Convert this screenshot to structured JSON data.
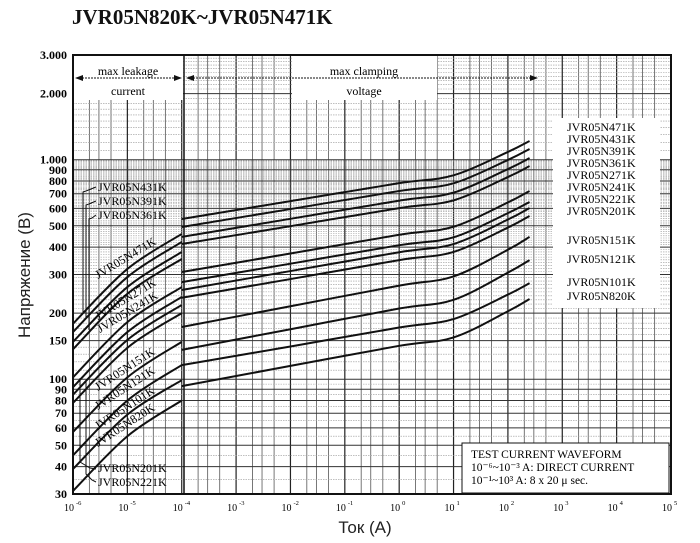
{
  "title": "JVR05N820K~JVR05N471K",
  "chart_data": {
    "type": "line",
    "title": "JVR05N820K~JVR05N471K",
    "xlabel": "Ток (А)",
    "ylabel": "Напряжение (В)",
    "xscale": "log",
    "yscale": "log",
    "xlim": [
      1e-06,
      100000.0
    ],
    "ylim": [
      30,
      3000
    ],
    "grid": true,
    "x_tick_base": "10",
    "x_tick_exponents": [
      "-6",
      "-5",
      "-4",
      "-3",
      "-2",
      "-1",
      "0",
      "1",
      "2",
      "3",
      "4",
      "5"
    ],
    "y_ticks": [
      {
        "value": 30,
        "label": "30"
      },
      {
        "value": 40,
        "label": "40"
      },
      {
        "value": 50,
        "label": "50"
      },
      {
        "value": 60,
        "label": "60"
      },
      {
        "value": 70,
        "label": "70"
      },
      {
        "value": 80,
        "label": "80"
      },
      {
        "value": 90,
        "label": "90"
      },
      {
        "value": 100,
        "label": "100"
      },
      {
        "value": 150,
        "label": "150"
      },
      {
        "value": 200,
        "label": "200"
      },
      {
        "value": 300,
        "label": "300"
      },
      {
        "value": 400,
        "label": "400"
      },
      {
        "value": 500,
        "label": "500"
      },
      {
        "value": 600,
        "label": "600"
      },
      {
        "value": 700,
        "label": "700"
      },
      {
        "value": 800,
        "label": "800"
      },
      {
        "value": 900,
        "label": "900"
      },
      {
        "value": 1000,
        "label": "1.000"
      },
      {
        "value": 2000,
        "label": "2.000"
      },
      {
        "value": 3000,
        "label": "3.000"
      }
    ],
    "regions": [
      {
        "name": "leakage",
        "label_line1": "max leakage",
        "label_line2": "current",
        "x_from": 1e-06,
        "x_to": 0.0001
      },
      {
        "name": "clamping",
        "label_line1": "max clamping",
        "label_line2": "voltage",
        "x_from": 0.0001,
        "x_to": 250
      }
    ],
    "leakage_x": [
      1e-06,
      1e-05,
      0.0001
    ],
    "clamping_x": [
      0.0001,
      0.01,
      1,
      10,
      100,
      250
    ],
    "series": [
      {
        "name": "JVR05N471K",
        "leakage": [
          179,
          318,
          459
        ],
        "clamping": [
          537,
          648,
          782,
          849,
          1085,
          1217
        ]
      },
      {
        "name": "JVR05N431K",
        "leakage": [
          164,
          292,
          422
        ],
        "clamping": [
          494,
          596,
          720,
          781,
          998,
          1119
        ]
      },
      {
        "name": "JVR05N391K",
        "leakage": [
          148,
          263,
          380
        ],
        "clamping": [
          445,
          538,
          651,
          708,
          907,
          1018
        ]
      },
      {
        "name": "JVR05N361K",
        "leakage": [
          137,
          245,
          353
        ],
        "clamping": [
          413,
          498,
          602,
          653,
          834,
          936
        ]
      },
      {
        "name": "JVR05N271K",
        "leakage": [
          102,
          182,
          263
        ],
        "clamping": [
          308,
          374,
          455,
          495,
          639,
          720
        ]
      },
      {
        "name": "JVR05N241K",
        "leakage": [
          92,
          164,
          237
        ],
        "clamping": [
          277,
          336,
          408,
          443,
          571,
          642
        ]
      },
      {
        "name": "JVR05N221K",
        "leakage": [
          85,
          151,
          218
        ],
        "clamping": [
          255,
          311,
          379,
          413,
          534,
          603
        ]
      },
      {
        "name": "JVR05N201K",
        "leakage": [
          78,
          139,
          200
        ],
        "clamping": [
          235,
          286,
          349,
          380,
          491,
          554
        ]
      },
      {
        "name": "JVR05N151K",
        "leakage": [
          57.5,
          102,
          148
        ],
        "clamping": [
          173,
          215,
          267,
          294,
          389,
          445
        ]
      },
      {
        "name": "JVR05N121K",
        "leakage": [
          45,
          80,
          116
        ],
        "clamping": [
          136,
          169,
          210,
          230,
          306,
          349
        ]
      },
      {
        "name": "JVR05N101K",
        "leakage": [
          39,
          69,
          99
        ],
        "clamping": [
          116,
          141,
          172,
          188,
          243,
          274
        ]
      },
      {
        "name": "JVR05N820K",
        "leakage": [
          31,
          55,
          80
        ],
        "clamping": [
          93,
          115,
          142,
          155,
          204,
          232
        ]
      }
    ],
    "legend": [
      "JVR05N471K",
      "JVR05N431K",
      "JVR05N391K",
      "JVR05N361K",
      "JVR05N271K",
      "JVR05N241K",
      "JVR05N221K",
      "JVR05N201K",
      "JVR05N151K",
      "JVR05N121K",
      "JVR05N101K",
      "JVR05N820K"
    ],
    "legend_placement": "right",
    "left_labels": {
      "n431": "JVR05N431K",
      "n391": "JVR05N391K",
      "n361": "JVR05N361K",
      "n471": "JVR05N471K",
      "n271": "JVR05N271K",
      "n241": "JVR05N241K",
      "n151": "JVR05N151K",
      "n121": "JVR05N121K",
      "n101": "JVR05N101K",
      "n820": "JVR05N820K",
      "n201": "JVR05N201K",
      "n221": "JVR05N221K"
    },
    "note": {
      "line1": "TEST CURRENT WAVEFORM",
      "line2": "10⁻⁶~10⁻³ A: DIRECT CURRENT",
      "line3": "10⁻¹~10³ A: 8 x 20  μ  sec."
    }
  }
}
